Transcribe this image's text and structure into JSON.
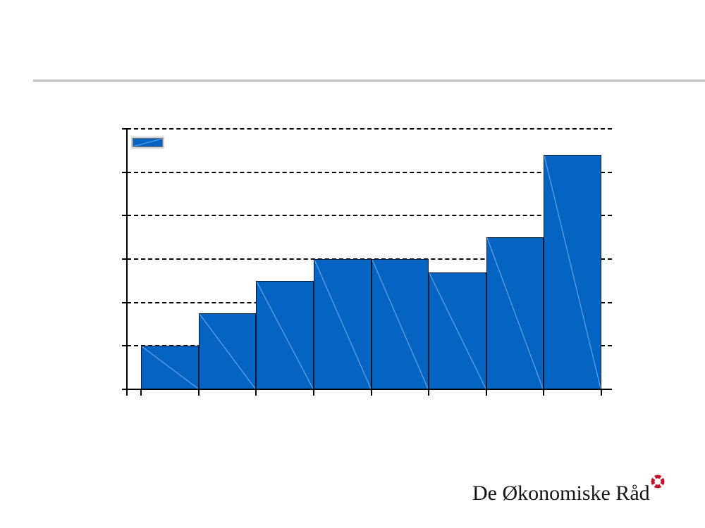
{
  "slide": {
    "background_color": "#ffffff",
    "divider_color": "#c0c0c0"
  },
  "footer": {
    "logo_text": "De Økonomiske Råd",
    "logo_icon_color": "#c3112b",
    "logo_text_color": "#141414"
  },
  "chart_data": {
    "type": "bar",
    "title": "",
    "xlabel": "",
    "ylabel": "",
    "categories": [
      "",
      "",
      "",
      "",
      "",
      "",
      "",
      ""
    ],
    "values": [
      1.0,
      1.75,
      2.5,
      3.0,
      3.0,
      2.7,
      3.5,
      5.4
    ],
    "ylim": [
      0,
      6
    ],
    "gridline_step": 1,
    "gridline_style": "dashed",
    "grid": "on",
    "tick_labels_visible": false,
    "legend_position": "top-left",
    "legend_label": "",
    "bar_color": "#0563c1",
    "bar_border_color": "#0a1830",
    "axis_color": "#000000"
  }
}
